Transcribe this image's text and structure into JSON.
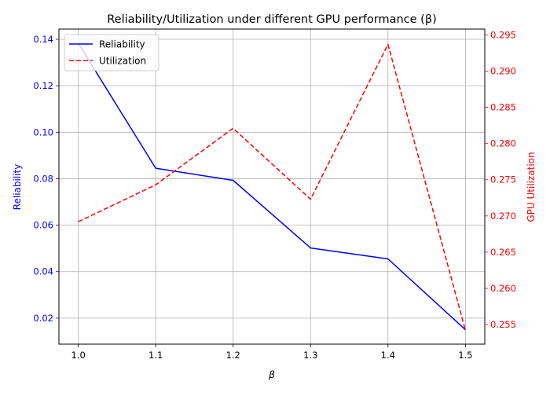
{
  "chart_data": {
    "type": "line",
    "title": "Reliability/Utilization under different GPU performance (β)",
    "xlabel": "β",
    "ylabel_left": "Reliability",
    "ylabel_right": "GPU Utilization",
    "x": [
      1.0,
      1.1,
      1.2,
      1.3,
      1.4,
      1.5
    ],
    "x_ticks": [
      "1.0",
      "1.1",
      "1.2",
      "1.3",
      "1.4",
      "1.5"
    ],
    "xlim": [
      0.975,
      1.525
    ],
    "y_left_ticks": [
      "0.02",
      "0.04",
      "0.06",
      "0.08",
      "0.10",
      "0.12",
      "0.14"
    ],
    "ylim_left": [
      0.0088,
      0.1444
    ],
    "y_right_ticks": [
      "0.255",
      "0.260",
      "0.265",
      "0.270",
      "0.275",
      "0.280",
      "0.285",
      "0.290",
      "0.295"
    ],
    "ylim_right": [
      0.2523,
      0.2958
    ],
    "grid": true,
    "legend_position": "top-left",
    "series": [
      {
        "name": "Reliability",
        "axis": "left",
        "color": "#0000ff",
        "dash": "solid",
        "values": [
          0.1383,
          0.0845,
          0.0793,
          0.0502,
          0.0455,
          0.015
        ]
      },
      {
        "name": "Utilization",
        "axis": "right",
        "color": "#ff0000",
        "dash": "dashed",
        "values": [
          0.2692,
          0.2743,
          0.2821,
          0.2723,
          0.2937,
          0.2542
        ]
      }
    ]
  }
}
